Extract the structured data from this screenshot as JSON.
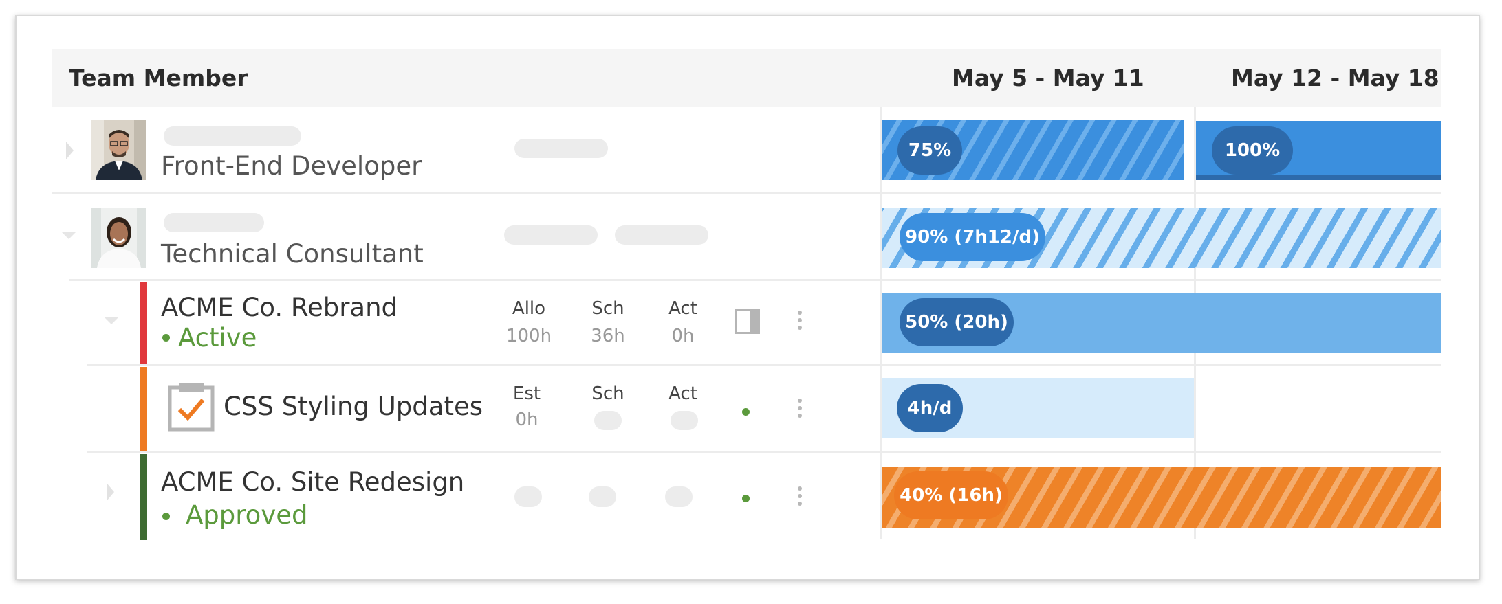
{
  "header": {
    "team_member_label": "Team Member",
    "weeks": [
      "May 5 - May 11",
      "May 12 - May 18"
    ]
  },
  "members": [
    {
      "title": "Front-End Developer",
      "allocations": [
        "75%",
        "100%"
      ]
    },
    {
      "title": "Technical Consultant",
      "allocations": [
        "90% (7h12/d)"
      ]
    }
  ],
  "projects": [
    {
      "name": "ACME Co. Rebrand",
      "status": "Active",
      "columns": [
        {
          "label": "Allo",
          "value": "100h"
        },
        {
          "label": "Sch",
          "value": "36h"
        },
        {
          "label": "Act",
          "value": "0h"
        }
      ],
      "allocation": "50% (20h)",
      "color": "#e0383c"
    },
    {
      "name": "CSS Styling Updates",
      "columns": [
        {
          "label": "Est",
          "value": "0h"
        },
        {
          "label": "Sch",
          "value": ""
        },
        {
          "label": "Act",
          "value": ""
        }
      ],
      "allocation": "4h/d",
      "color": "#ee7a22"
    },
    {
      "name": "ACME Co. Site Redesign",
      "status": "Approved",
      "allocation": "40% (16h)",
      "color": "#3e6b32"
    }
  ],
  "colors": {
    "blue_dark": "#2d6aab",
    "blue": "#3b8fde",
    "blue_light_bar": "#6fb2ea",
    "blue_pale": "#d6ebfb",
    "orange": "#ee7a22",
    "status_green": "#5b9a3c"
  },
  "icons": [
    "chevron-right-icon",
    "chevron-down-icon",
    "task-clipboard-icon",
    "kebab-menu-icon",
    "split-view-icon"
  ]
}
